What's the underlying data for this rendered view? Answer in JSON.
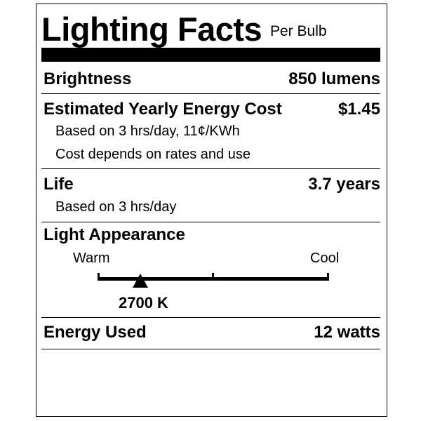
{
  "header": {
    "title": "Lighting Facts",
    "subtitle": "Per Bulb"
  },
  "brightness": {
    "label": "Brightness",
    "value": "850 lumens"
  },
  "energy_cost": {
    "label": "Estimated Yearly Energy Cost",
    "value": "$1.45",
    "note1": "Based on 3 hrs/day, 11¢/KWh",
    "note2": "Cost depends on rates and use"
  },
  "life": {
    "label": "Life",
    "value": "3.7 years",
    "note": "Based on 3 hrs/day"
  },
  "appearance": {
    "label": "Light Appearance",
    "warm": "Warm",
    "cool": "Cool",
    "value": "2700 K",
    "scale_position_fraction": 0.185
  },
  "energy_used": {
    "label": "Energy Used",
    "value": "12 watts"
  }
}
